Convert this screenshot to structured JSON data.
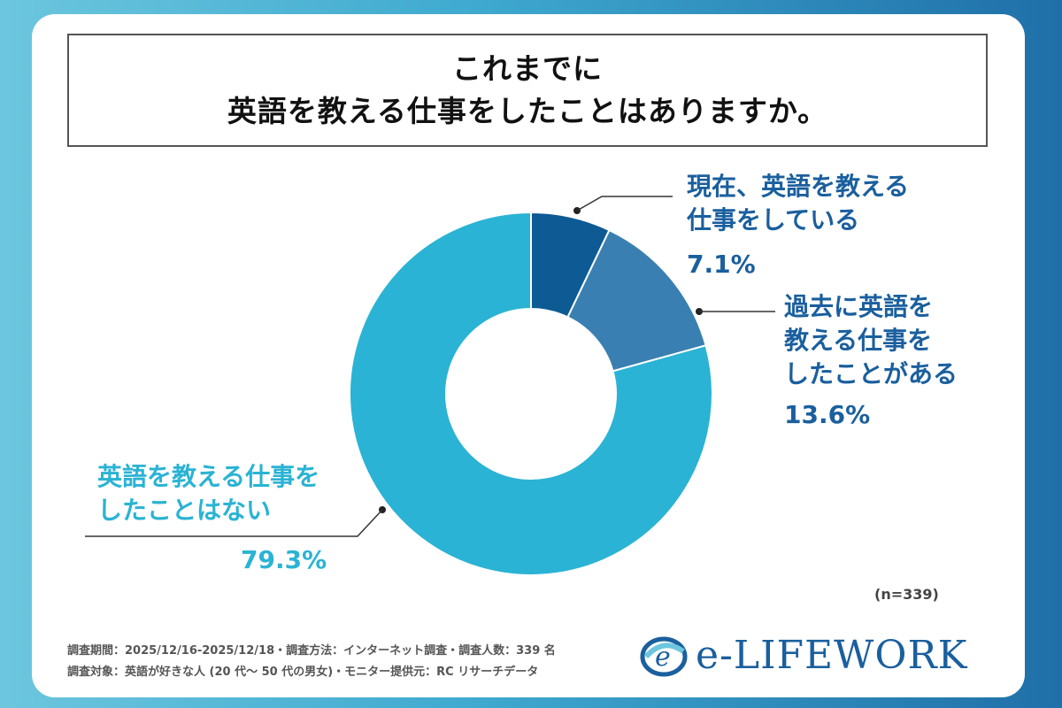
{
  "title": {
    "line1": "これまでに",
    "line2": "英語を教える仕事をしたことはありますか。"
  },
  "chart_data": {
    "type": "pie",
    "title": "これまでに英語を教える仕事をしたことはありますか。",
    "slices": [
      {
        "label_lines": [
          "現在、英語を教える",
          "仕事をしている"
        ],
        "value": 7.1,
        "value_label": "7.1%",
        "color": "#0d5a94"
      },
      {
        "label_lines": [
          "過去に英語を",
          "教える仕事を",
          "したことがある"
        ],
        "value": 13.6,
        "value_label": "13.6%",
        "color": "#3a7fb1"
      },
      {
        "label_lines": [
          "英語を教える仕事を",
          "したことはない"
        ],
        "value": 79.3,
        "value_label": "79.3%",
        "color": "#2ab3d4"
      }
    ],
    "label_colors": [
      "#1a5f9e",
      "#1a5f9e",
      "#2ab3d4"
    ],
    "donut": true
  },
  "sample_note": "(n=339)",
  "footer": {
    "line1": "調査期間：2025/12/16-2025/12/18・調査方法：インターネット調査・調査人数：339 名",
    "line2": "調査対象：英語が好きな人 (20 代〜 50 代の男女)・モニター提供元：RC リサーチデータ"
  },
  "logo": {
    "text": "e-LIFEWORK",
    "icon": "e-swirl-logo-icon",
    "color": "#1a5f9e"
  }
}
